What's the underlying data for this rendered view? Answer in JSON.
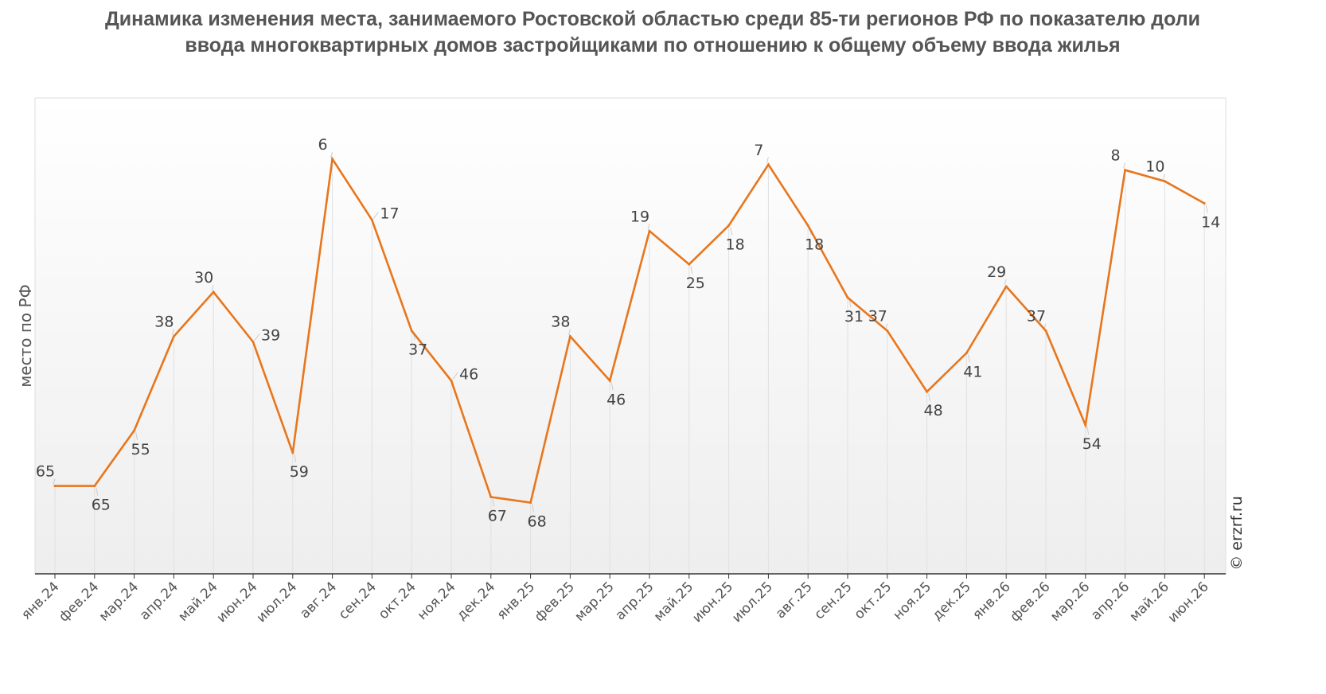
{
  "chart_data": {
    "type": "line",
    "title": "Динамика изменения места, занимаемого Ростовской областью среди 85-ти регионов РФ по показателю доли ввода многоквартирных домов застройщиками по отношению к общему объему ввода жилья",
    "ylabel": "место по РФ",
    "xlabel": "",
    "y_inverted": true,
    "ylim": [
      1,
      81
    ],
    "grid": "vertical",
    "categories": [
      "янв.24",
      "фев.24",
      "мар.24",
      "апр.24",
      "май.24",
      "июн.24",
      "июл.24",
      "авг.24",
      "сен.24",
      "окт.24",
      "ноя.24",
      "дек.24",
      "янв.25",
      "фев.25",
      "мар.25",
      "апр.25",
      "май.25",
      "июн.25",
      "июл.25",
      "авг.25",
      "сен.25",
      "окт.25",
      "ноя.25",
      "дек.25",
      "янв.26",
      "фев.26",
      "мар.26",
      "апр.26",
      "май.26",
      "июн.26"
    ],
    "series": [
      {
        "name": "",
        "color": "#e8761c",
        "values": [
          65,
          65,
          55,
          38,
          30,
          39,
          59,
          6,
          17,
          37,
          46,
          67,
          68,
          38,
          46,
          19,
          25,
          18,
          7,
          18,
          31,
          37,
          48,
          41,
          29,
          37,
          54,
          8,
          10,
          14
        ],
        "label_side": [
          "above",
          "below",
          "below",
          "above",
          "above",
          "right",
          "below",
          "above",
          "right",
          "below",
          "right",
          "below",
          "below",
          "above",
          "below",
          "above",
          "below",
          "below",
          "above",
          "below",
          "below",
          "above",
          "below",
          "below",
          "above",
          "above",
          "below",
          "above",
          "above",
          "below"
        ]
      }
    ]
  },
  "credit": "© erzrf.ru"
}
